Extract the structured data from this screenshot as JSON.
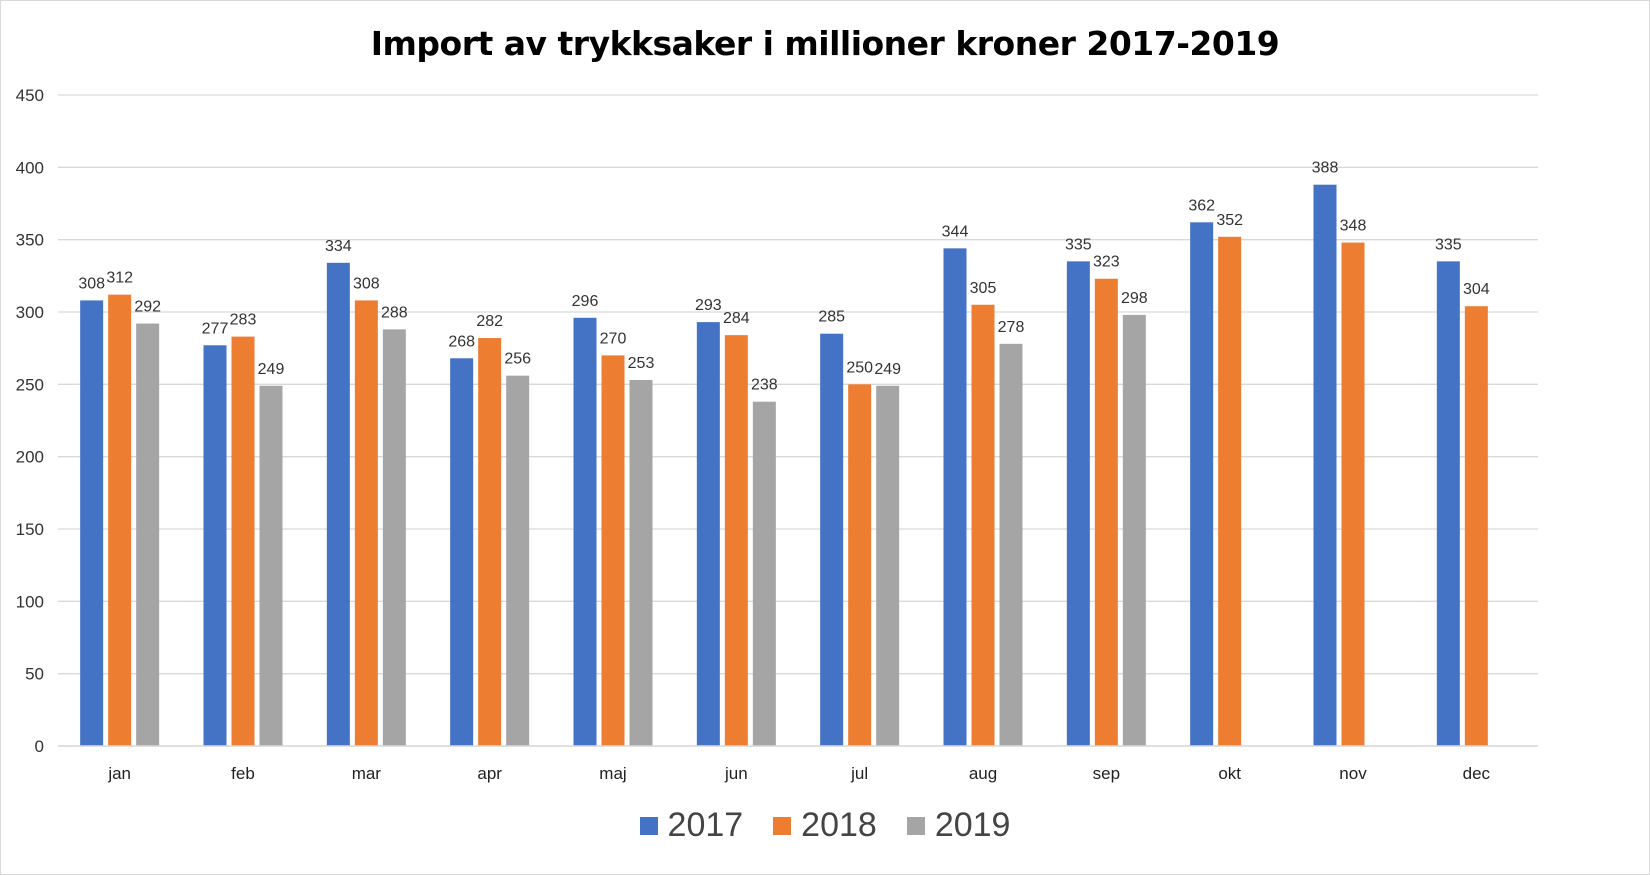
{
  "chart_data": {
    "type": "bar",
    "title": "Import av trykksaker i millioner kroner 2017-2019",
    "xlabel": "",
    "ylabel": "",
    "ylim": [
      0,
      450
    ],
    "yticks": [
      0,
      50,
      100,
      150,
      200,
      250,
      300,
      350,
      400,
      450
    ],
    "grid": true,
    "legend": "bottom",
    "categories": [
      "jan",
      "feb",
      "mar",
      "apr",
      "maj",
      "jun",
      "jul",
      "aug",
      "sep",
      "okt",
      "nov",
      "dec"
    ],
    "series": [
      {
        "name": "2017",
        "color": "#4472C4",
        "values": [
          308,
          277,
          334,
          268,
          296,
          293,
          285,
          344,
          335,
          362,
          388,
          335
        ]
      },
      {
        "name": "2018",
        "color": "#ED7D31",
        "values": [
          312,
          283,
          308,
          282,
          270,
          284,
          250,
          305,
          323,
          352,
          348,
          304
        ]
      },
      {
        "name": "2019",
        "color": "#A5A5A5",
        "values": [
          292,
          249,
          288,
          256,
          253,
          238,
          249,
          278,
          298,
          null,
          null,
          null
        ]
      }
    ]
  }
}
